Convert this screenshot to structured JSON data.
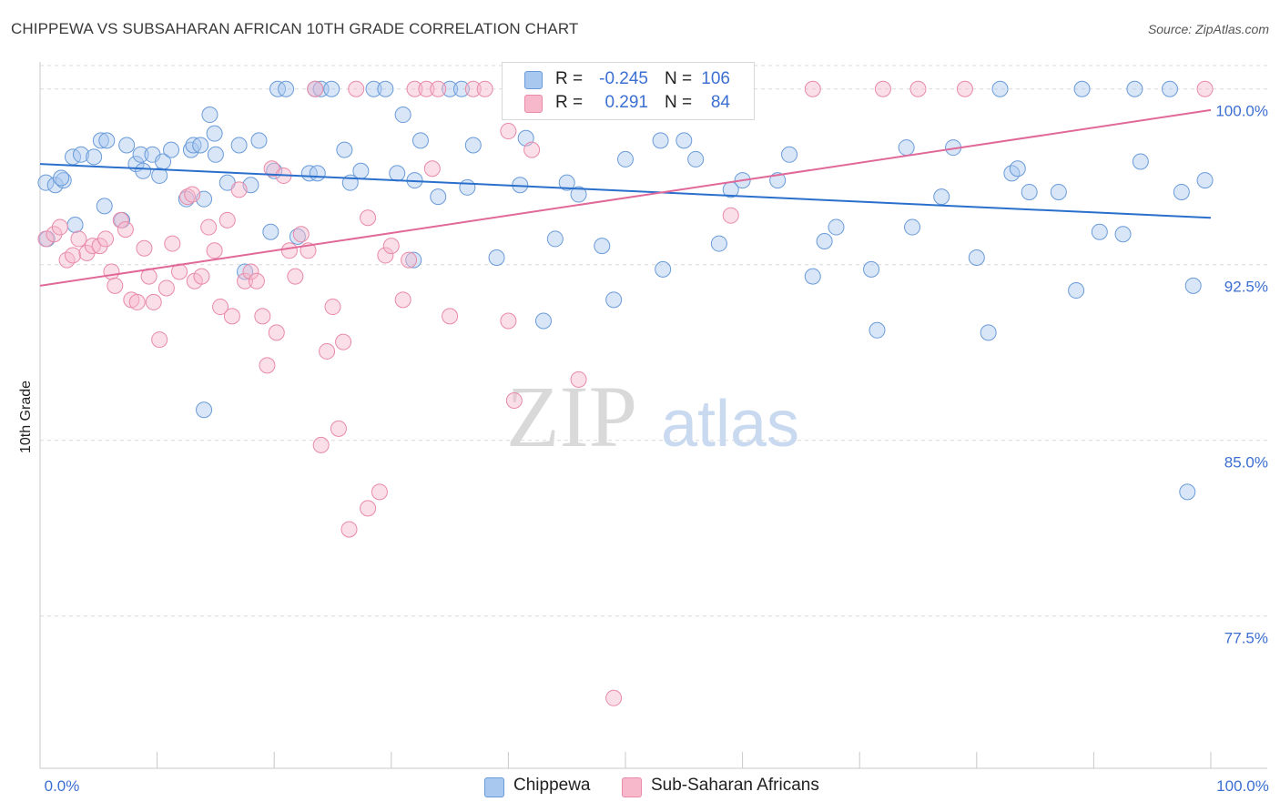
{
  "title": "CHIPPEWA VS SUBSAHARAN AFRICAN 10TH GRADE CORRELATION CHART",
  "source": "Source: ZipAtlas.com",
  "watermark": {
    "zip": "ZIP",
    "atlas": "atlas"
  },
  "colors": {
    "chippewa_fill": "#a8c8f0",
    "chippewa_stroke": "#6a9bd8",
    "chippewa_line": "#2a6fcc",
    "subsaharan_fill": "#f7b8cc",
    "subsaharan_stroke": "#e88aa8",
    "subsaharan_line": "#e0699a",
    "value_text": "#3b6fd1"
  },
  "legend": {
    "rows": [
      {
        "r_label": "R =",
        "r_value": "-0.245",
        "n_label": "N =",
        "n_value": "106"
      },
      {
        "r_label": "R =",
        "r_value": "0.291",
        "n_label": "N =",
        "n_value": "84"
      }
    ]
  },
  "bottom_legend": {
    "items": [
      "Chippewa",
      "Sub-Saharan Africans"
    ]
  },
  "chart_data": {
    "type": "scatter",
    "title": "CHIPPEWA VS SUBSAHARAN AFRICAN 10TH GRADE CORRELATION CHART",
    "xlabel": "",
    "ylabel": "10th Grade",
    "xlim": [
      0,
      100
    ],
    "ylim": [
      71.0,
      101.0
    ],
    "x_tick_labels": [
      "0.0%",
      "100.0%"
    ],
    "y_ticks": [
      77.5,
      85.0,
      92.5,
      100.0
    ],
    "y_tick_labels": [
      "77.5%",
      "85.0%",
      "92.5%",
      "100.0%"
    ],
    "grid": true,
    "legend_position": "top-center",
    "series": [
      {
        "name": "Chippewa",
        "trend": {
          "x": [
            0,
            100
          ],
          "y": [
            96.8,
            94.5
          ]
        },
        "points": [
          [
            0.6,
            93.6
          ],
          [
            0.5,
            96.0
          ],
          [
            1.3,
            95.9
          ],
          [
            2.0,
            96.1
          ],
          [
            2.8,
            97.1
          ],
          [
            3.5,
            97.2
          ],
          [
            4.6,
            97.1
          ],
          [
            5.2,
            97.8
          ],
          [
            5.7,
            97.8
          ],
          [
            7.4,
            97.6
          ],
          [
            8.2,
            96.8
          ],
          [
            8.8,
            96.5
          ],
          [
            8.6,
            97.2
          ],
          [
            9.6,
            97.2
          ],
          [
            10.2,
            96.3
          ],
          [
            10.5,
            96.9
          ],
          [
            11.2,
            97.4
          ],
          [
            12.5,
            95.3
          ],
          [
            12.9,
            97.4
          ],
          [
            13.1,
            97.6
          ],
          [
            14.0,
            95.3
          ],
          [
            13.7,
            97.6
          ],
          [
            14.5,
            98.9
          ],
          [
            14.9,
            98.1
          ],
          [
            15.0,
            97.2
          ],
          [
            16.0,
            96.0
          ],
          [
            17.0,
            97.6
          ],
          [
            18.0,
            95.9
          ],
          [
            18.7,
            97.8
          ],
          [
            19.7,
            93.9
          ],
          [
            20.3,
            100.0
          ],
          [
            21.0,
            100.0
          ],
          [
            22.0,
            93.7
          ],
          [
            23.0,
            96.4
          ],
          [
            23.7,
            96.4
          ],
          [
            23.5,
            100.0
          ],
          [
            24.0,
            100.0
          ],
          [
            24.9,
            100.0
          ],
          [
            26.0,
            97.4
          ],
          [
            27.4,
            96.5
          ],
          [
            28.5,
            100.0
          ],
          [
            29.5,
            100.0
          ],
          [
            30.5,
            96.4
          ],
          [
            31.0,
            98.9
          ],
          [
            31.9,
            92.7
          ],
          [
            32.5,
            97.8
          ],
          [
            34.0,
            95.4
          ],
          [
            35.0,
            100.0
          ],
          [
            36.0,
            100.0
          ],
          [
            37.0,
            97.6
          ],
          [
            39.0,
            92.8
          ],
          [
            41.0,
            95.9
          ],
          [
            41.5,
            97.9
          ],
          [
            43.0,
            90.1
          ],
          [
            44.0,
            93.6
          ],
          [
            45.0,
            96.0
          ],
          [
            46.0,
            95.5
          ],
          [
            48.0,
            93.3
          ],
          [
            49.0,
            91.0
          ],
          [
            50.0,
            97.0
          ],
          [
            53.0,
            97.8
          ],
          [
            53.2,
            92.3
          ],
          [
            55.0,
            97.8
          ],
          [
            56.0,
            97.0
          ],
          [
            58.0,
            93.4
          ],
          [
            59.0,
            95.7
          ],
          [
            60.0,
            96.1
          ],
          [
            63.0,
            96.1
          ],
          [
            64.0,
            97.2
          ],
          [
            66.0,
            92.0
          ],
          [
            67.0,
            93.5
          ],
          [
            68.0,
            94.1
          ],
          [
            71.0,
            92.3
          ],
          [
            71.5,
            89.7
          ],
          [
            74.0,
            97.5
          ],
          [
            74.5,
            94.1
          ],
          [
            77.0,
            95.4
          ],
          [
            78.0,
            97.5
          ],
          [
            80.0,
            92.8
          ],
          [
            81.0,
            89.6
          ],
          [
            82.0,
            100.0
          ],
          [
            83.0,
            96.4
          ],
          [
            83.5,
            96.6
          ],
          [
            84.5,
            95.6
          ],
          [
            87.0,
            95.6
          ],
          [
            88.5,
            91.4
          ],
          [
            89.0,
            100.0
          ],
          [
            90.5,
            93.9
          ],
          [
            92.5,
            93.8
          ],
          [
            93.5,
            100.0
          ],
          [
            94.0,
            96.9
          ],
          [
            96.5,
            100.0
          ],
          [
            97.5,
            95.6
          ],
          [
            98.0,
            82.8
          ],
          [
            98.5,
            91.6
          ],
          [
            99.5,
            96.1
          ],
          [
            14.0,
            86.3
          ],
          [
            17.5,
            92.2
          ],
          [
            7.0,
            94.4
          ],
          [
            5.5,
            95.0
          ],
          [
            3.0,
            94.2
          ],
          [
            1.8,
            96.2
          ],
          [
            20.0,
            96.5
          ],
          [
            26.5,
            96.0
          ],
          [
            32.0,
            96.1
          ],
          [
            36.5,
            95.8
          ]
        ]
      },
      {
        "name": "Sub-Saharan Africans",
        "trend": {
          "x": [
            0,
            100
          ],
          "y": [
            91.6,
            99.1
          ]
        },
        "points": [
          [
            0.5,
            93.6
          ],
          [
            1.2,
            93.8
          ],
          [
            1.7,
            94.1
          ],
          [
            2.3,
            92.7
          ],
          [
            2.8,
            92.9
          ],
          [
            3.3,
            93.6
          ],
          [
            4.0,
            93.0
          ],
          [
            4.5,
            93.3
          ],
          [
            5.1,
            93.3
          ],
          [
            5.6,
            93.6
          ],
          [
            6.1,
            92.2
          ],
          [
            6.4,
            91.6
          ],
          [
            6.9,
            94.4
          ],
          [
            7.3,
            94.0
          ],
          [
            7.8,
            91.0
          ],
          [
            8.3,
            90.9
          ],
          [
            8.9,
            93.2
          ],
          [
            9.3,
            92.0
          ],
          [
            9.7,
            90.9
          ],
          [
            10.2,
            89.3
          ],
          [
            10.8,
            91.5
          ],
          [
            11.3,
            93.4
          ],
          [
            11.9,
            92.2
          ],
          [
            12.6,
            95.4
          ],
          [
            13.2,
            91.8
          ],
          [
            13.8,
            92.0
          ],
          [
            14.4,
            94.1
          ],
          [
            14.9,
            93.1
          ],
          [
            15.4,
            90.7
          ],
          [
            16.0,
            94.4
          ],
          [
            16.4,
            90.3
          ],
          [
            17.0,
            95.7
          ],
          [
            17.5,
            91.8
          ],
          [
            18.0,
            92.2
          ],
          [
            18.5,
            91.8
          ],
          [
            19.0,
            90.3
          ],
          [
            19.4,
            88.2
          ],
          [
            19.8,
            96.6
          ],
          [
            20.2,
            89.6
          ],
          [
            20.8,
            96.3
          ],
          [
            21.3,
            93.1
          ],
          [
            21.8,
            92.0
          ],
          [
            22.3,
            93.8
          ],
          [
            22.9,
            93.1
          ],
          [
            23.5,
            100.0
          ],
          [
            24.0,
            84.8
          ],
          [
            24.5,
            88.8
          ],
          [
            25.0,
            90.7
          ],
          [
            25.5,
            85.5
          ],
          [
            25.9,
            89.2
          ],
          [
            26.4,
            81.2
          ],
          [
            27.0,
            100.0
          ],
          [
            28.0,
            82.1
          ],
          [
            29.0,
            82.8
          ],
          [
            29.5,
            92.9
          ],
          [
            30.0,
            93.3
          ],
          [
            31.0,
            91.0
          ],
          [
            32.0,
            100.0
          ],
          [
            33.0,
            100.0
          ],
          [
            33.5,
            96.6
          ],
          [
            34.0,
            100.0
          ],
          [
            35.0,
            90.3
          ],
          [
            37.0,
            100.0
          ],
          [
            38.0,
            100.0
          ],
          [
            40.0,
            90.1
          ],
          [
            40.5,
            86.7
          ],
          [
            42.0,
            97.4
          ],
          [
            44.0,
            100.0
          ],
          [
            46.0,
            87.6
          ],
          [
            47.0,
            100.0
          ],
          [
            49.0,
            74.0
          ],
          [
            50.0,
            100.0
          ],
          [
            52.0,
            100.0
          ],
          [
            55.0,
            100.0
          ],
          [
            59.0,
            94.6
          ],
          [
            66.0,
            100.0
          ],
          [
            72.0,
            100.0
          ],
          [
            75.0,
            100.0
          ],
          [
            79.0,
            100.0
          ],
          [
            99.5,
            100.0
          ],
          [
            28.0,
            94.5
          ],
          [
            31.5,
            92.7
          ],
          [
            13.0,
            95.5
          ],
          [
            40.0,
            98.2
          ]
        ]
      }
    ]
  }
}
